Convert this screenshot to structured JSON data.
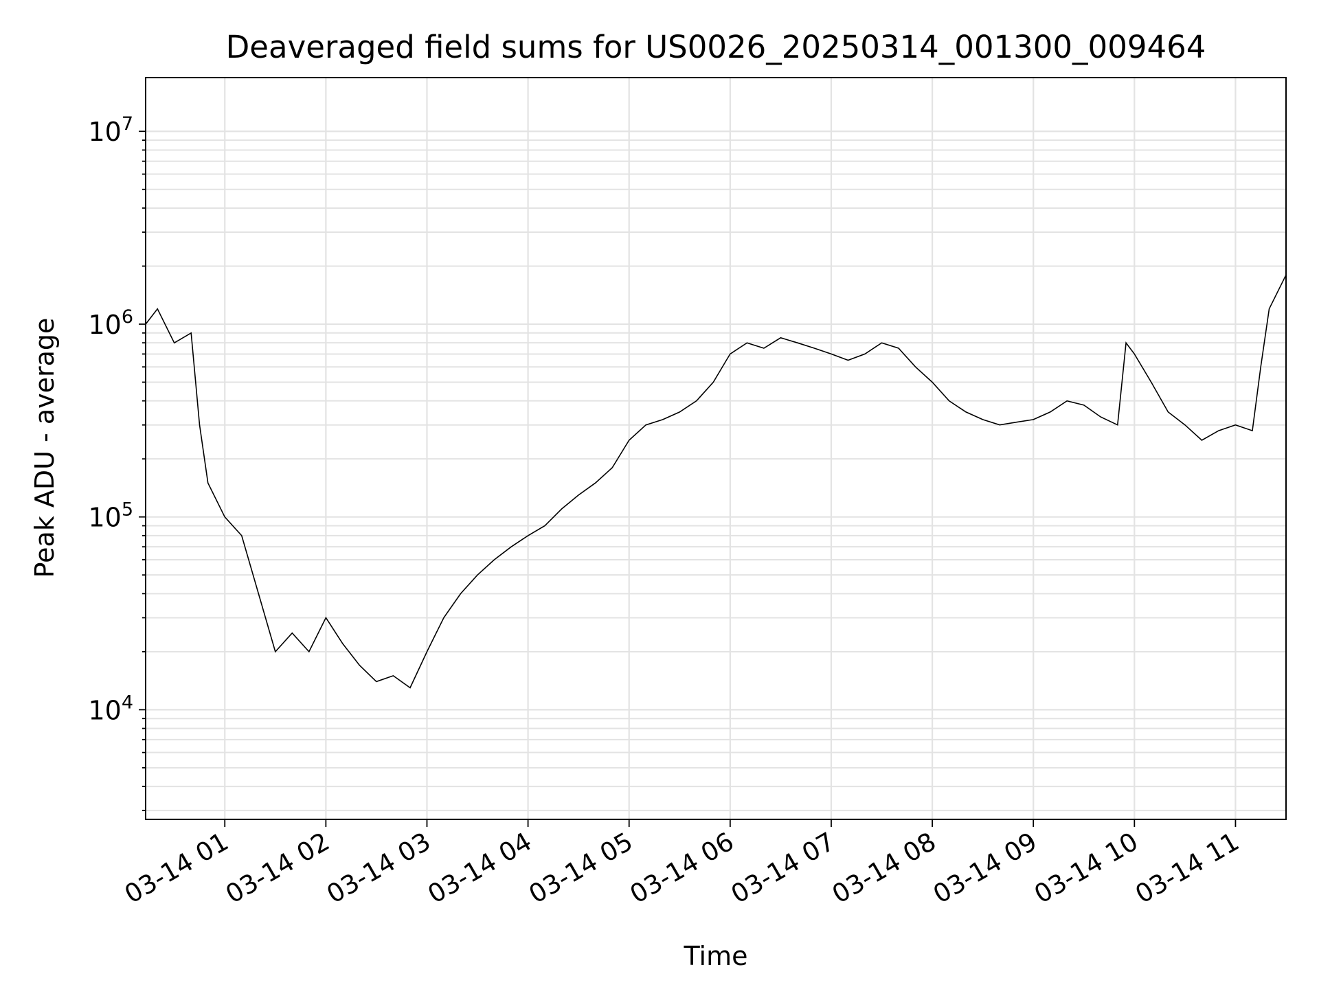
{
  "chart_data": {
    "type": "line",
    "title": "Deaveraged field sums for US0026_20250314_001300_009464",
    "xlabel": "Time",
    "ylabel": "Peak ADU - average",
    "yscale": "log",
    "ylim": [
      2700,
      19000000
    ],
    "xlim": [
      "2025-03-14 00:13",
      "2025-03-14 11:30"
    ],
    "grid": true,
    "line_color": "#000000",
    "x_ticks": [
      "03-14 01",
      "03-14 02",
      "03-14 03",
      "03-14 04",
      "03-14 05",
      "03-14 06",
      "03-14 07",
      "03-14 08",
      "03-14 09",
      "03-14 10",
      "03-14 11"
    ],
    "y_ticks": [
      {
        "base": "10",
        "exp": "4"
      },
      {
        "base": "10",
        "exp": "5"
      },
      {
        "base": "10",
        "exp": "6"
      },
      {
        "base": "10",
        "exp": "7"
      }
    ],
    "series": [
      {
        "x": [
          "2025-03-14 00:13",
          "2025-03-14 00:20",
          "2025-03-14 00:30",
          "2025-03-14 00:40",
          "2025-03-14 00:45",
          "2025-03-14 00:50",
          "2025-03-14 01:00",
          "2025-03-14 01:10",
          "2025-03-14 01:20",
          "2025-03-14 01:30",
          "2025-03-14 01:40",
          "2025-03-14 01:50",
          "2025-03-14 02:00",
          "2025-03-14 02:10",
          "2025-03-14 02:20",
          "2025-03-14 02:30",
          "2025-03-14 02:40",
          "2025-03-14 02:50",
          "2025-03-14 03:00",
          "2025-03-14 03:10",
          "2025-03-14 03:20",
          "2025-03-14 03:30",
          "2025-03-14 03:40",
          "2025-03-14 03:50",
          "2025-03-14 04:00",
          "2025-03-14 04:10",
          "2025-03-14 04:20",
          "2025-03-14 04:30",
          "2025-03-14 04:40",
          "2025-03-14 04:50",
          "2025-03-14 05:00",
          "2025-03-14 05:10",
          "2025-03-14 05:20",
          "2025-03-14 05:30",
          "2025-03-14 05:40",
          "2025-03-14 05:50",
          "2025-03-14 06:00",
          "2025-03-14 06:10",
          "2025-03-14 06:20",
          "2025-03-14 06:30",
          "2025-03-14 06:40",
          "2025-03-14 06:50",
          "2025-03-14 07:00",
          "2025-03-14 07:10",
          "2025-03-14 07:20",
          "2025-03-14 07:30",
          "2025-03-14 07:40",
          "2025-03-14 07:50",
          "2025-03-14 08:00",
          "2025-03-14 08:10",
          "2025-03-14 08:20",
          "2025-03-14 08:30",
          "2025-03-14 08:40",
          "2025-03-14 08:50",
          "2025-03-14 09:00",
          "2025-03-14 09:10",
          "2025-03-14 09:20",
          "2025-03-14 09:30",
          "2025-03-14 09:40",
          "2025-03-14 09:50",
          "2025-03-14 09:55",
          "2025-03-14 10:00",
          "2025-03-14 10:10",
          "2025-03-14 10:20",
          "2025-03-14 10:30",
          "2025-03-14 10:40",
          "2025-03-14 10:50",
          "2025-03-14 11:00",
          "2025-03-14 11:10",
          "2025-03-14 11:15",
          "2025-03-14 11:20",
          "2025-03-14 11:30"
        ],
        "y": [
          1000000,
          1200000,
          800000,
          900000,
          300000,
          150000,
          100000,
          80000,
          40000,
          20000,
          25000,
          20000,
          30000,
          22000,
          17000,
          14000,
          15000,
          13000,
          20000,
          30000,
          40000,
          50000,
          60000,
          70000,
          80000,
          90000,
          110000,
          130000,
          150000,
          180000,
          250000,
          300000,
          320000,
          350000,
          400000,
          500000,
          700000,
          800000,
          750000,
          850000,
          800000,
          750000,
          700000,
          650000,
          700000,
          800000,
          750000,
          600000,
          500000,
          400000,
          350000,
          320000,
          300000,
          310000,
          320000,
          350000,
          400000,
          380000,
          330000,
          300000,
          800000,
          700000,
          500000,
          350000,
          300000,
          250000,
          280000,
          300000,
          280000,
          600000,
          1200000,
          1800000
        ]
      }
    ]
  }
}
